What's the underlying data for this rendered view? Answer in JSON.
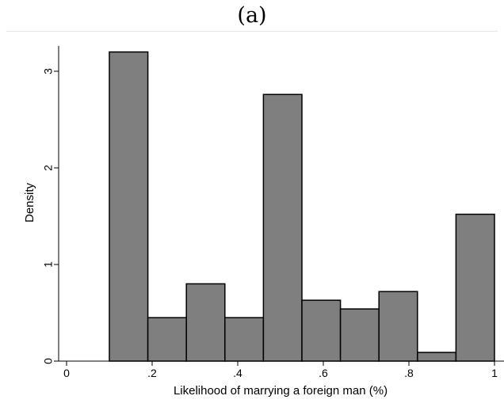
{
  "panel_label": "(a)",
  "chart_data": {
    "type": "bar",
    "subtype": "histogram",
    "xlabel": "Likelihood of marrying a foreign man (%)",
    "ylabel": "Density",
    "xlim": [
      0,
      1
    ],
    "ylim": [
      0,
      3.2
    ],
    "x_ticks": [
      0,
      0.2,
      0.4,
      0.6,
      0.8,
      1
    ],
    "x_tick_labels": [
      "0",
      ".2",
      ".4",
      ".6",
      ".8",
      "1"
    ],
    "y_ticks": [
      0,
      1,
      2,
      3
    ],
    "y_tick_labels": [
      "0",
      "1",
      "2",
      "3"
    ],
    "bins": [
      {
        "x0": 0.1,
        "x1": 0.19,
        "value": 3.2
      },
      {
        "x0": 0.19,
        "x1": 0.28,
        "value": 0.45
      },
      {
        "x0": 0.28,
        "x1": 0.37,
        "value": 0.8
      },
      {
        "x0": 0.37,
        "x1": 0.46,
        "value": 0.45
      },
      {
        "x0": 0.46,
        "x1": 0.55,
        "value": 2.76
      },
      {
        "x0": 0.55,
        "x1": 0.64,
        "value": 0.63
      },
      {
        "x0": 0.64,
        "x1": 0.73,
        "value": 0.54
      },
      {
        "x0": 0.73,
        "x1": 0.82,
        "value": 0.72
      },
      {
        "x0": 0.82,
        "x1": 0.91,
        "value": 0.09
      },
      {
        "x0": 0.91,
        "x1": 1.0,
        "value": 1.52
      }
    ],
    "bar_fill": "#7f7f7f",
    "bar_stroke": "#000000",
    "grid": false,
    "legend": "none"
  }
}
